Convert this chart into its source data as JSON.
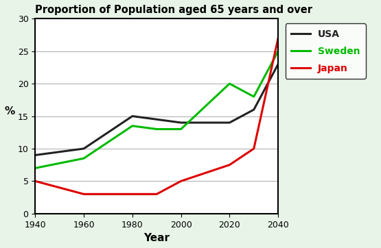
{
  "title": "Proportion of Population aged 65 years and over",
  "xlabel": "Year",
  "ylabel": "%",
  "years": [
    1940,
    1960,
    1980,
    1990,
    2000,
    2020,
    2030,
    2040
  ],
  "usa": [
    9,
    10,
    15,
    14.5,
    14,
    14,
    16,
    23
  ],
  "sweden": [
    7,
    8.5,
    13.5,
    13,
    13,
    20,
    18,
    25
  ],
  "japan": [
    5,
    3,
    3,
    3,
    5,
    7.5,
    10,
    27
  ],
  "usa_color": "#222222",
  "sweden_color": "#00bb00",
  "japan_color": "#dd0000",
  "usa_label": "USA",
  "sweden_label": "Sweden",
  "japan_label": "Japan",
  "xlim": [
    1940,
    2040
  ],
  "ylim": [
    0,
    30
  ],
  "yticks": [
    0,
    5,
    10,
    15,
    20,
    25,
    30
  ],
  "xticks": [
    1940,
    1960,
    1980,
    2000,
    2020,
    2040
  ],
  "bg_color": "#e8f4e8",
  "plot_bg_color": "#ffffff",
  "linewidth": 2.2,
  "figwidth": 5.55,
  "figheight": 3.62,
  "dpi": 100
}
